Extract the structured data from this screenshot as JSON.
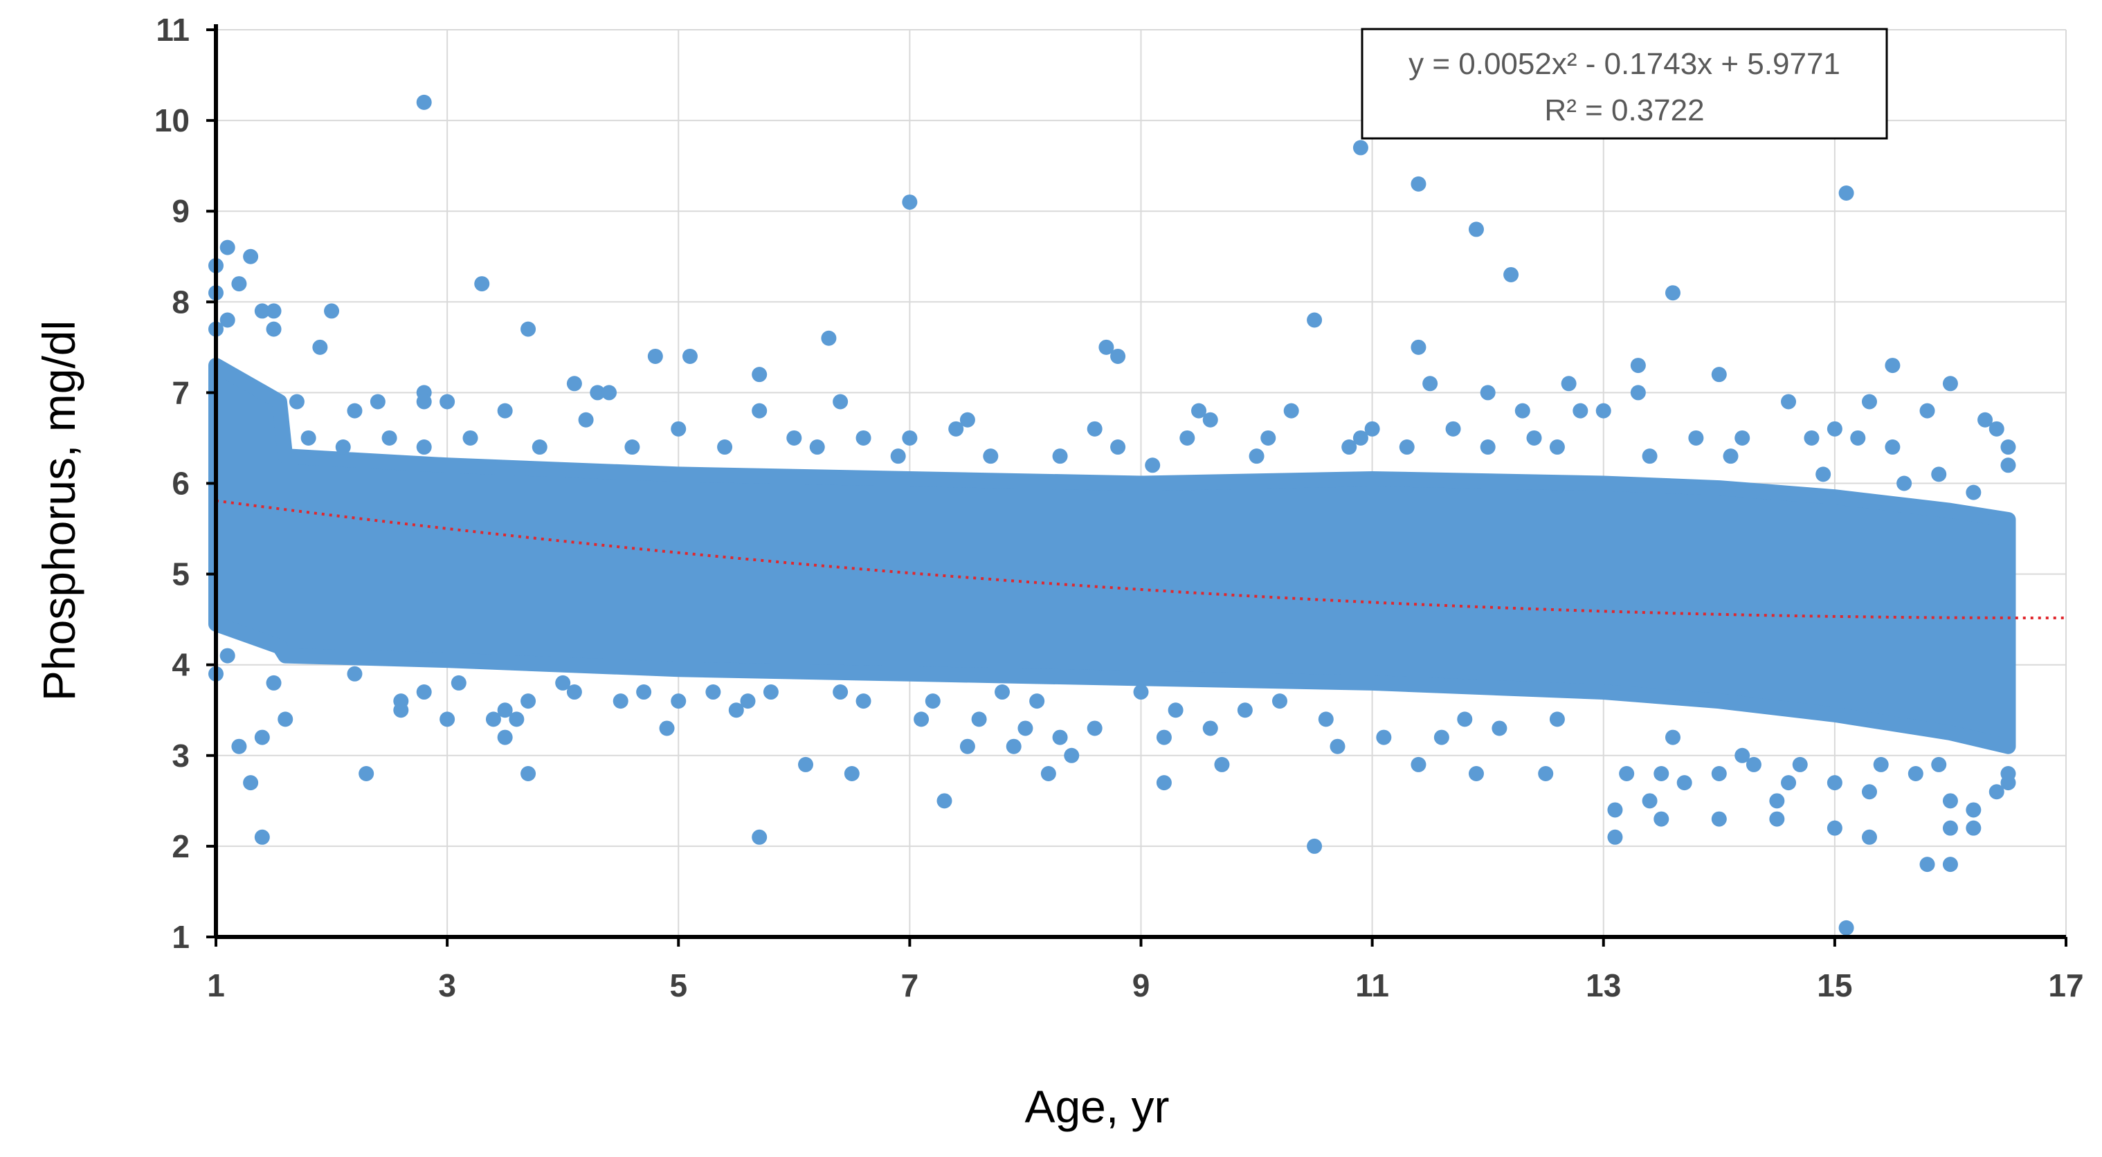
{
  "chart_data": {
    "type": "scatter",
    "title": "",
    "xlabel": "Age, yr",
    "ylabel": "Phosphorus, mg/dl",
    "xlim": [
      1,
      17
    ],
    "ylim": [
      1,
      11
    ],
    "xticks": [
      1,
      3,
      5,
      7,
      9,
      11,
      13,
      15,
      17
    ],
    "yticks": [
      1,
      2,
      3,
      4,
      5,
      6,
      7,
      8,
      9,
      10,
      11
    ],
    "grid": true,
    "point_color": "#5b9bd5",
    "trendline_color": "#e0282e",
    "dense_band": [
      {
        "x": 1.0,
        "y_low": 4.45,
        "y_high": 7.3
      },
      {
        "x": 1.55,
        "y_low": 4.2,
        "y_high": 6.9
      },
      {
        "x": 1.6,
        "y_low": 4.1,
        "y_high": 6.3
      },
      {
        "x": 3,
        "y_low": 4.05,
        "y_high": 6.2
      },
      {
        "x": 5,
        "y_low": 3.95,
        "y_high": 6.1
      },
      {
        "x": 7,
        "y_low": 3.9,
        "y_high": 6.05
      },
      {
        "x": 9,
        "y_low": 3.85,
        "y_high": 6.0
      },
      {
        "x": 11,
        "y_low": 3.8,
        "y_high": 6.05
      },
      {
        "x": 13,
        "y_low": 3.7,
        "y_high": 6.0
      },
      {
        "x": 14,
        "y_low": 3.6,
        "y_high": 5.95
      },
      {
        "x": 15,
        "y_low": 3.45,
        "y_high": 5.85
      },
      {
        "x": 16,
        "y_low": 3.25,
        "y_high": 5.7
      },
      {
        "x": 16.5,
        "y_low": 3.1,
        "y_high": 5.6
      }
    ],
    "scatter_points": [
      [
        1.0,
        8.4
      ],
      [
        1.0,
        8.1
      ],
      [
        1.1,
        8.6
      ],
      [
        1.2,
        8.2
      ],
      [
        1.3,
        8.5
      ],
      [
        1.0,
        7.7
      ],
      [
        1.1,
        7.8
      ],
      [
        1.4,
        7.9
      ],
      [
        1.5,
        7.9
      ],
      [
        1.5,
        7.7
      ],
      [
        1.2,
        3.1
      ],
      [
        1.3,
        2.7
      ],
      [
        1.4,
        2.1
      ],
      [
        1.4,
        3.2
      ],
      [
        1.6,
        3.4
      ],
      [
        1.0,
        3.9
      ],
      [
        1.1,
        4.1
      ],
      [
        1.5,
        3.8
      ],
      [
        1.9,
        7.5
      ],
      [
        2.0,
        7.9
      ],
      [
        1.7,
        6.9
      ],
      [
        2.3,
        2.8
      ],
      [
        2.6,
        3.5
      ],
      [
        2.6,
        3.6
      ],
      [
        2.4,
        6.9
      ],
      [
        2.2,
        6.8
      ],
      [
        2.8,
        10.2
      ],
      [
        2.8,
        7.0
      ],
      [
        2.8,
        6.9
      ],
      [
        3.0,
        6.9
      ],
      [
        2.8,
        6.4
      ],
      [
        2.8,
        3.7
      ],
      [
        3.0,
        3.4
      ],
      [
        3.3,
        8.2
      ],
      [
        3.5,
        6.8
      ],
      [
        3.4,
        3.4
      ],
      [
        3.5,
        3.2
      ],
      [
        3.5,
        3.5
      ],
      [
        3.7,
        2.8
      ],
      [
        3.7,
        7.7
      ],
      [
        3.6,
        3.4
      ],
      [
        3.7,
        3.6
      ],
      [
        4.1,
        7.1
      ],
      [
        4.3,
        7.0
      ],
      [
        4.4,
        7.0
      ],
      [
        4.2,
        6.7
      ],
      [
        4.5,
        3.6
      ],
      [
        4.1,
        3.7
      ],
      [
        4.8,
        7.4
      ],
      [
        4.9,
        3.3
      ],
      [
        5.0,
        6.6
      ],
      [
        5.1,
        7.4
      ],
      [
        5.0,
        3.6
      ],
      [
        5.3,
        3.7
      ],
      [
        5.5,
        3.5
      ],
      [
        5.7,
        7.2
      ],
      [
        5.7,
        6.8
      ],
      [
        5.7,
        2.1
      ],
      [
        5.8,
        3.7
      ],
      [
        6.0,
        6.5
      ],
      [
        6.1,
        2.9
      ],
      [
        6.3,
        7.6
      ],
      [
        6.4,
        6.9
      ],
      [
        6.5,
        2.8
      ],
      [
        6.4,
        3.7
      ],
      [
        6.6,
        6.5
      ],
      [
        7.0,
        9.1
      ],
      [
        7.0,
        6.5
      ],
      [
        7.1,
        3.4
      ],
      [
        7.3,
        2.5
      ],
      [
        7.4,
        6.6
      ],
      [
        7.5,
        6.7
      ],
      [
        7.5,
        3.1
      ],
      [
        7.6,
        3.4
      ],
      [
        7.8,
        3.7
      ],
      [
        7.9,
        3.1
      ],
      [
        8.0,
        3.3
      ],
      [
        8.2,
        2.8
      ],
      [
        8.3,
        3.2
      ],
      [
        8.4,
        3.0
      ],
      [
        8.6,
        3.3
      ],
      [
        8.7,
        7.5
      ],
      [
        8.8,
        7.4
      ],
      [
        8.6,
        6.6
      ],
      [
        8.8,
        6.4
      ],
      [
        9.0,
        3.7
      ],
      [
        9.2,
        2.7
      ],
      [
        9.2,
        3.2
      ],
      [
        9.4,
        6.5
      ],
      [
        9.5,
        6.8
      ],
      [
        9.6,
        6.7
      ],
      [
        9.6,
        3.3
      ],
      [
        9.7,
        2.9
      ],
      [
        9.9,
        3.5
      ],
      [
        10.1,
        6.5
      ],
      [
        10.3,
        6.8
      ],
      [
        10.5,
        7.8
      ],
      [
        10.5,
        2.0
      ],
      [
        10.6,
        3.4
      ],
      [
        10.7,
        3.1
      ],
      [
        10.9,
        9.7
      ],
      [
        10.9,
        6.5
      ],
      [
        11.0,
        6.6
      ],
      [
        11.1,
        3.2
      ],
      [
        11.4,
        9.3
      ],
      [
        11.4,
        7.5
      ],
      [
        11.5,
        7.1
      ],
      [
        11.4,
        2.9
      ],
      [
        11.6,
        3.2
      ],
      [
        11.7,
        6.6
      ],
      [
        11.9,
        8.8
      ],
      [
        11.9,
        2.8
      ],
      [
        12.0,
        7.0
      ],
      [
        12.2,
        8.3
      ],
      [
        12.3,
        6.8
      ],
      [
        12.4,
        6.5
      ],
      [
        12.1,
        3.3
      ],
      [
        12.5,
        2.8
      ],
      [
        12.7,
        7.1
      ],
      [
        12.8,
        6.8
      ],
      [
        13.0,
        6.8
      ],
      [
        13.1,
        2.4
      ],
      [
        13.1,
        2.1
      ],
      [
        13.2,
        2.8
      ],
      [
        13.3,
        7.3
      ],
      [
        13.3,
        7.0
      ],
      [
        13.4,
        2.5
      ],
      [
        13.5,
        2.3
      ],
      [
        13.5,
        2.8
      ],
      [
        13.6,
        8.1
      ],
      [
        13.7,
        2.7
      ],
      [
        13.8,
        6.5
      ],
      [
        14.0,
        7.2
      ],
      [
        14.0,
        2.3
      ],
      [
        14.0,
        2.8
      ],
      [
        14.2,
        6.5
      ],
      [
        14.3,
        2.9
      ],
      [
        14.5,
        2.3
      ],
      [
        14.5,
        2.5
      ],
      [
        14.6,
        6.9
      ],
      [
        14.6,
        2.7
      ],
      [
        14.8,
        6.5
      ],
      [
        15.0,
        6.6
      ],
      [
        15.0,
        2.2
      ],
      [
        15.0,
        2.7
      ],
      [
        15.1,
        9.2
      ],
      [
        15.1,
        1.1
      ],
      [
        15.2,
        6.5
      ],
      [
        15.3,
        6.9
      ],
      [
        15.3,
        2.1
      ],
      [
        15.3,
        2.6
      ],
      [
        15.5,
        7.3
      ],
      [
        15.5,
        6.4
      ],
      [
        15.7,
        2.8
      ],
      [
        15.8,
        1.8
      ],
      [
        15.8,
        6.8
      ],
      [
        15.9,
        6.1
      ],
      [
        16.0,
        7.1
      ],
      [
        16.0,
        1.8
      ],
      [
        16.0,
        2.2
      ],
      [
        16.0,
        2.5
      ],
      [
        16.2,
        2.4
      ],
      [
        16.2,
        2.2
      ],
      [
        16.3,
        6.7
      ],
      [
        16.4,
        6.6
      ],
      [
        16.5,
        6.4
      ],
      [
        16.5,
        6.2
      ],
      [
        16.5,
        2.7
      ],
      [
        16.4,
        2.6
      ],
      [
        16.5,
        2.8
      ],
      [
        1.8,
        6.5
      ],
      [
        2.1,
        6.4
      ],
      [
        2.5,
        6.5
      ],
      [
        3.2,
        6.5
      ],
      [
        3.8,
        6.4
      ],
      [
        4.6,
        6.4
      ],
      [
        5.4,
        6.4
      ],
      [
        6.2,
        6.4
      ],
      [
        6.9,
        6.3
      ],
      [
        7.7,
        6.3
      ],
      [
        8.3,
        6.3
      ],
      [
        9.1,
        6.2
      ],
      [
        10.0,
        6.3
      ],
      [
        10.8,
        6.4
      ],
      [
        11.3,
        6.4
      ],
      [
        12.0,
        6.4
      ],
      [
        12.6,
        6.4
      ],
      [
        13.4,
        6.3
      ],
      [
        14.1,
        6.3
      ],
      [
        14.9,
        6.1
      ],
      [
        15.6,
        6.0
      ],
      [
        16.2,
        5.9
      ],
      [
        2.2,
        3.9
      ],
      [
        3.1,
        3.8
      ],
      [
        4.0,
        3.8
      ],
      [
        4.7,
        3.7
      ],
      [
        5.6,
        3.6
      ],
      [
        6.6,
        3.6
      ],
      [
        7.2,
        3.6
      ],
      [
        8.1,
        3.6
      ],
      [
        9.3,
        3.5
      ],
      [
        10.2,
        3.6
      ],
      [
        11.8,
        3.4
      ],
      [
        12.6,
        3.4
      ],
      [
        13.6,
        3.2
      ],
      [
        14.2,
        3.0
      ],
      [
        14.7,
        2.9
      ],
      [
        15.4,
        2.9
      ],
      [
        15.9,
        2.9
      ]
    ],
    "trendline": {
      "type": "polynomial",
      "coefficients": [
        0.0052,
        -0.1743,
        5.9771
      ],
      "x_range": [
        1,
        17
      ],
      "style": "dotted"
    },
    "annotation": {
      "equation": "y = 0.0052x² - 0.1743x + 5.9771",
      "r_squared": "R² = 0.3722"
    }
  }
}
